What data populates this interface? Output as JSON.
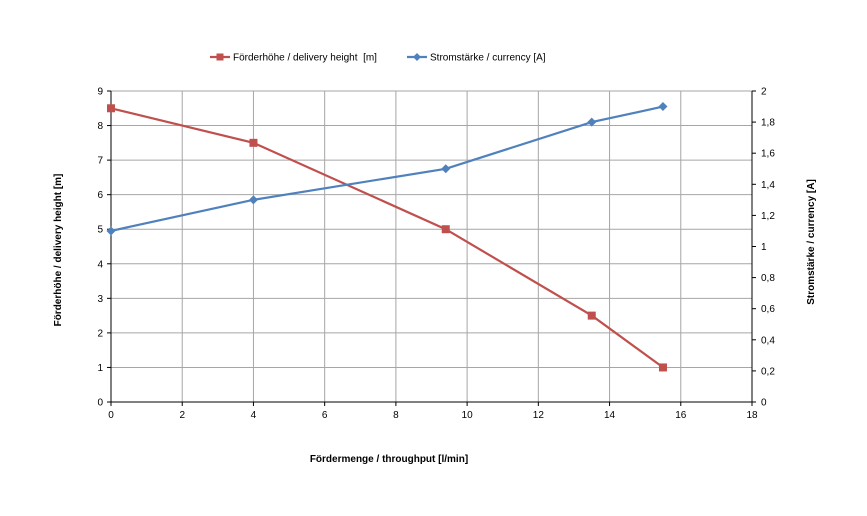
{
  "chart_data": {
    "type": "line",
    "xlabel": "Fördermenge / throughput [l/min]",
    "ylabel": "Förderhöhe / delivery height [m]",
    "y2label": "Stromstärke / currency [A]",
    "xlim": [
      0,
      18
    ],
    "ylim": [
      0,
      9
    ],
    "y2lim": [
      0,
      2
    ],
    "x_ticks": [
      "0",
      "2",
      "4",
      "6",
      "8",
      "10",
      "12",
      "14",
      "16",
      "18"
    ],
    "y_ticks": [
      "0",
      "1",
      "2",
      "3",
      "4",
      "5",
      "6",
      "7",
      "8",
      "9"
    ],
    "y2_ticks": [
      "0",
      "0,2",
      "0,4",
      "0,6",
      "0,8",
      "1",
      "1,2",
      "1,4",
      "1,6",
      "1,8",
      "2"
    ],
    "grid": true,
    "legend_position": "top",
    "series": [
      {
        "name": "Förderhöhe / delivery height  [m]",
        "axis": "left",
        "color": "#C0504D",
        "marker": "square",
        "x": [
          0,
          4,
          9.4,
          13.5,
          15.5
        ],
        "y": [
          8.5,
          7.5,
          5.0,
          2.5,
          1.0
        ]
      },
      {
        "name": "Stromstärke / currency [A]",
        "axis": "right",
        "color": "#4F81BD",
        "marker": "diamond",
        "x": [
          0,
          4,
          9.4,
          13.5,
          15.5
        ],
        "y": [
          1.1,
          1.3,
          1.5,
          1.8,
          1.9
        ]
      }
    ]
  }
}
